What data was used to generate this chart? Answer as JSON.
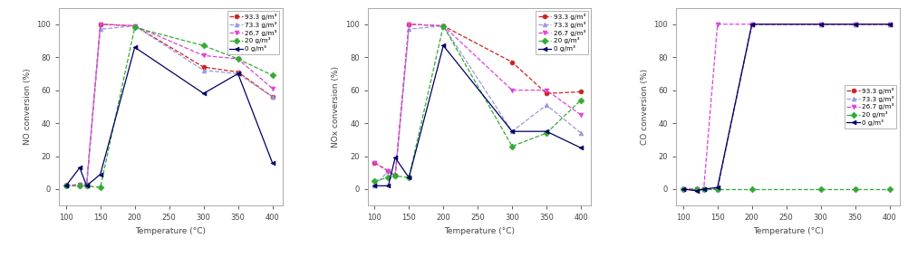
{
  "x_temps": [
    100,
    120,
    130,
    150,
    200,
    300,
    350,
    400
  ],
  "series": {
    "93.3": {
      "color": "#cc2222",
      "marker": "o",
      "linestyle": "--",
      "NO": [
        2,
        2,
        2,
        100,
        99,
        74,
        71,
        56
      ],
      "NOx": [
        16,
        11,
        8,
        100,
        99,
        77,
        58,
        59
      ],
      "CO": [
        0,
        0,
        0,
        0,
        100,
        100,
        100,
        100
      ]
    },
    "73.3": {
      "color": "#9999dd",
      "marker": "^",
      "linestyle": "--",
      "NO": [
        2,
        2,
        2,
        97,
        99,
        72,
        70,
        56
      ],
      "NOx": [
        2,
        11,
        8,
        97,
        99,
        35,
        51,
        34
      ],
      "CO": [
        0,
        0,
        0,
        0,
        100,
        100,
        100,
        100
      ]
    },
    "26.7": {
      "color": "#dd44dd",
      "marker": "v",
      "linestyle": "--",
      "NO": [
        2,
        3,
        3,
        100,
        99,
        81,
        79,
        61
      ],
      "NOx": [
        16,
        11,
        8,
        100,
        99,
        60,
        60,
        45
      ],
      "CO": [
        0,
        0,
        0,
        100,
        100,
        100,
        100,
        100
      ]
    },
    "20": {
      "color": "#33aa33",
      "marker": "D",
      "linestyle": "--",
      "NO": [
        2,
        2,
        2,
        1,
        98,
        87,
        79,
        69
      ],
      "NOx": [
        5,
        7,
        8,
        7,
        99,
        26,
        34,
        54
      ],
      "CO": [
        0,
        0,
        0,
        0,
        0,
        0,
        0,
        0
      ]
    },
    "0": {
      "color": "#000066",
      "marker": "<",
      "linestyle": "-",
      "NO": [
        2,
        13,
        2,
        9,
        86,
        58,
        70,
        16
      ],
      "NOx": [
        2,
        2,
        19,
        7,
        87,
        35,
        35,
        25
      ],
      "CO": [
        0,
        -1,
        0,
        1,
        100,
        100,
        100,
        100
      ]
    }
  },
  "legend_labels": [
    "93.3 g/m³",
    "73.3 g/m³",
    "26.7 g/m³",
    "20 g/m³",
    "0 g/m³"
  ],
  "legend_keys": [
    "93.3",
    "73.3",
    "26.7",
    "20",
    "0"
  ],
  "xlim": [
    90,
    415
  ],
  "xticks": [
    100,
    150,
    200,
    250,
    300,
    350,
    400
  ],
  "ylim_main": [
    -10,
    110
  ],
  "yticks_main": [
    0,
    20,
    40,
    60,
    80,
    100
  ],
  "ylabel_NO": "NO conversion (%)",
  "ylabel_NOx": "NOx conversion (%)",
  "ylabel_CO": "CO conversion (%)",
  "xlabel": "Temperature (°C)",
  "legend_locs": [
    "upper right",
    "upper right",
    "center right"
  ],
  "legend_bbox": [
    null,
    null,
    [
      1.0,
      0.5
    ]
  ]
}
